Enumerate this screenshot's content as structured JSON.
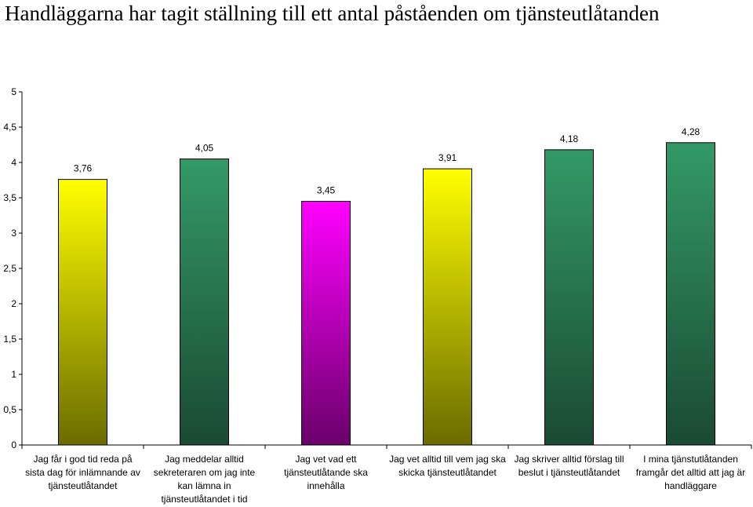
{
  "chart_data": {
    "type": "bar",
    "title": "Handläggarna har tagit ställning till ett antal påståenden om tjänsteutlåtanden",
    "categories": [
      "Jag får i god tid reda på sista dag för inlämnande av tjänsteutlåtandet",
      "Jag meddelar alltid sekreteraren om jag inte kan lämna in tjänsteutlåtandet i tid",
      "Jag vet vad ett tjänsteutlåtande ska innehålla",
      "Jag vet alltid till vem jag ska skicka tjänsteutlåtandet",
      "Jag skriver alltid förslag till beslut i tjänsteutlåtandet",
      "I mina tjänstutlåtanden framgår det alltid att jag är handläggare"
    ],
    "values": [
      3.76,
      4.05,
      3.45,
      3.91,
      4.18,
      4.28
    ],
    "value_labels": [
      "3,76",
      "4,05",
      "3,45",
      "3,91",
      "4,18",
      "4,28"
    ],
    "yticks": [
      "0",
      "0,5",
      "1",
      "1,5",
      "2",
      "2,5",
      "3",
      "3,5",
      "4",
      "4,5",
      "5"
    ],
    "ylim": [
      0,
      5
    ],
    "grid": false,
    "bar_colors": [
      [
        "#ffff00",
        "#6b6b00"
      ],
      [
        "#339966",
        "#1a4a33"
      ],
      [
        "#ff00ff",
        "#6a006a"
      ],
      [
        "#ffff00",
        "#6b6b00"
      ],
      [
        "#339966",
        "#1a4a33"
      ],
      [
        "#339966",
        "#1a4a33"
      ]
    ]
  }
}
